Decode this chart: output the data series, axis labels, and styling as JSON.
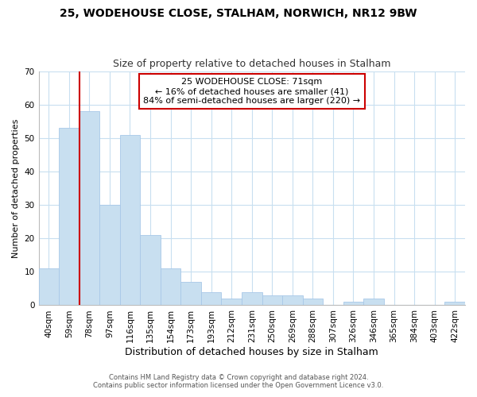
{
  "title": "25, WODEHOUSE CLOSE, STALHAM, NORWICH, NR12 9BW",
  "subtitle": "Size of property relative to detached houses in Stalham",
  "xlabel": "Distribution of detached houses by size in Stalham",
  "ylabel": "Number of detached properties",
  "bar_labels": [
    "40sqm",
    "59sqm",
    "78sqm",
    "97sqm",
    "116sqm",
    "135sqm",
    "154sqm",
    "173sqm",
    "193sqm",
    "212sqm",
    "231sqm",
    "250sqm",
    "269sqm",
    "288sqm",
    "307sqm",
    "326sqm",
    "346sqm",
    "365sqm",
    "384sqm",
    "403sqm",
    "422sqm"
  ],
  "bar_values": [
    11,
    53,
    58,
    30,
    51,
    21,
    11,
    7,
    4,
    2,
    4,
    3,
    3,
    2,
    0,
    1,
    2,
    0,
    0,
    0,
    1
  ],
  "bar_color": "#c8dff0",
  "bar_edge_color": "#a8c8e8",
  "ylim": [
    0,
    70
  ],
  "yticks": [
    0,
    10,
    20,
    30,
    40,
    50,
    60,
    70
  ],
  "vline_x": 1.5,
  "vline_color": "#cc0000",
  "annotation_text": "25 WODEHOUSE CLOSE: 71sqm\n← 16% of detached houses are smaller (41)\n84% of semi-detached houses are larger (220) →",
  "annotation_box_color": "#ffffff",
  "annotation_box_edge": "#cc0000",
  "footer1": "Contains HM Land Registry data © Crown copyright and database right 2024.",
  "footer2": "Contains public sector information licensed under the Open Government Licence v3.0.",
  "background_color": "#ffffff",
  "grid_color": "#c8dff0",
  "title_fontsize": 10,
  "subtitle_fontsize": 9,
  "ylabel_fontsize": 8,
  "xlabel_fontsize": 9
}
